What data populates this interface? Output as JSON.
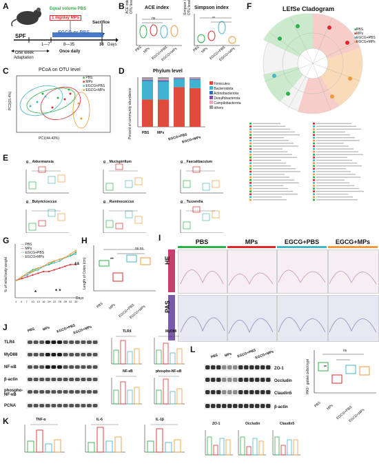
{
  "panel_labels": {
    "A": "A",
    "B": "B",
    "C": "C",
    "D": "D",
    "E": "E",
    "F": "F",
    "G": "G",
    "H": "H",
    "I": "I",
    "J": "J",
    "K": "K",
    "L": "L"
  },
  "groups": [
    "PBS",
    "MPs",
    "EGCG+PBS",
    "EGCG+MPs"
  ],
  "colors": {
    "PBS": "#2bb04a",
    "MPs": "#e2262a",
    "EGCG+PBS": "#45b6c6",
    "EGCG+MPs": "#f29a38"
  },
  "panelA": {
    "equal_pbs": "Equal volume PBS",
    "mps_dose": "1 mg/day MPs",
    "egcg": "EGCG or PBS",
    "sacrifice": "Sacrifice",
    "spf": "SPF",
    "d1_7": "1—7",
    "d8_35": "8—35",
    "d36": "36",
    "days": "Days",
    "week": "One week",
    "adapt": "Adaptation",
    "once": "Once daily"
  },
  "panelB": {
    "ace_title": "ACE index",
    "simpson_title": "Simpson index",
    "ace_ylabel": "ACE index of OTU level",
    "simpson_ylabel": "Simpson index of OTU level"
  },
  "panelC": {
    "title": "PCoA on OTU level",
    "xlabel": "PC1(44.43%)",
    "ylabel": "PC2(15.4%)"
  },
  "panelD": {
    "title": "Phylum level",
    "ylabel": "Percent of community abundance",
    "legend": [
      "Firmicutes",
      "Bacteroidota",
      "Actinobacteriota",
      "Desulfobacterota",
      "Campilobacterota",
      "others"
    ],
    "legend_colors": [
      "#e14b3b",
      "#3fb3d1",
      "#2d6fb7",
      "#7d4fa6",
      "#f4a6b8",
      "#9a9a9a"
    ]
  },
  "chart_data": [
    {
      "type": "bar",
      "title": "Phylum level",
      "ylabel": "Percent of community abundance",
      "categories": [
        "PBS",
        "MPs",
        "EGCG+PBS",
        "EGCG+MPs"
      ],
      "stacked": true,
      "ylim": [
        0,
        1
      ],
      "series": [
        {
          "name": "Firmicutes",
          "values": [
            0.55,
            0.55,
            0.8,
            0.78
          ]
        },
        {
          "name": "Bacteroidota",
          "values": [
            0.37,
            0.36,
            0.16,
            0.17
          ]
        },
        {
          "name": "Actinobacteriota",
          "values": [
            0.02,
            0.02,
            0.01,
            0.01
          ]
        },
        {
          "name": "Desulfobacterota",
          "values": [
            0.01,
            0.01,
            0.01,
            0.01
          ]
        },
        {
          "name": "Campilobacterota",
          "values": [
            0.01,
            0.02,
            0.01,
            0.01
          ]
        },
        {
          "name": "others",
          "values": [
            0.04,
            0.04,
            0.01,
            0.02
          ]
        }
      ]
    },
    {
      "type": "line",
      "ylabel": "% of initial body weight",
      "xlabel": "Days",
      "x": [
        1,
        4,
        7,
        10,
        13,
        16,
        19,
        22,
        25,
        28,
        31,
        34
      ],
      "ylim": [
        90,
        120
      ],
      "series": [
        {
          "name": "PBS",
          "values": [
            100,
            102,
            104,
            106,
            107,
            108,
            109,
            111,
            112,
            113,
            114,
            116
          ]
        },
        {
          "name": "MPs",
          "values": [
            100,
            101,
            102,
            103,
            104,
            105,
            105,
            106,
            107,
            108,
            109,
            109
          ]
        },
        {
          "name": "EGCG+PBS",
          "values": [
            100,
            102,
            103,
            105,
            106,
            108,
            109,
            110,
            111,
            113,
            114,
            115
          ]
        },
        {
          "name": "EGCG+MPs",
          "values": [
            100,
            102,
            104,
            105,
            107,
            108,
            110,
            111,
            112,
            113,
            115,
            117
          ]
        }
      ]
    }
  ],
  "panelE": {
    "titles": [
      "g__Akkermansia",
      "g__Mucispirillum",
      "g__Faecalibaculum",
      "g__Butyricicoccus",
      "g__Ruminococcus",
      "g__Tuzzerella"
    ],
    "ylabel": "Relative abundance"
  },
  "panelF": {
    "title": "LEfSe Cladogram",
    "legend": [
      "PBS",
      "MPs",
      "EGCG+PBS",
      "EGCG+MPs"
    ]
  },
  "panelG": {
    "ylabel": "% of initial body weight",
    "xlabel": "Days",
    "ticks": [
      "1",
      "4",
      "7",
      "10",
      "13",
      "16",
      "19",
      "22",
      "25",
      "28",
      "31",
      "34"
    ],
    "stars1": "*",
    "stars2": "* *",
    "amp": "&&"
  },
  "panelH": {
    "ylabel": "Length of Colon (cm)",
    "ns1": "ns ns",
    "star": "**"
  },
  "panelI": {
    "row_he": "HE",
    "row_pas": "PAS"
  },
  "panelJ": {
    "labels": [
      "TLR4",
      "MyD88",
      "NF-κB",
      "β-actin",
      "phospho-NF-κB",
      "PCNA"
    ],
    "chart_titles": [
      "TLR4",
      "MyD88",
      "NF-κB",
      "phospho-NF-κB"
    ],
    "ylabel": "Fold Change"
  },
  "panelK": {
    "titles": [
      "TNF-α",
      "IL-6",
      "IL-1β"
    ],
    "ylabel": "Relative mRNA level (colon)"
  },
  "panelL": {
    "labels": [
      "ZO-1",
      "Occludin",
      "Claudin5",
      "β-actin"
    ],
    "chart_titles": [
      "ZO-1",
      "Occludin",
      "Claudin5"
    ],
    "goblet_ylabel": "PAS⁺ goblet cells/crypt",
    "ylabel": "Fold Change"
  },
  "sig": {
    "ns": "ns",
    "double": "**",
    "single": "*"
  }
}
